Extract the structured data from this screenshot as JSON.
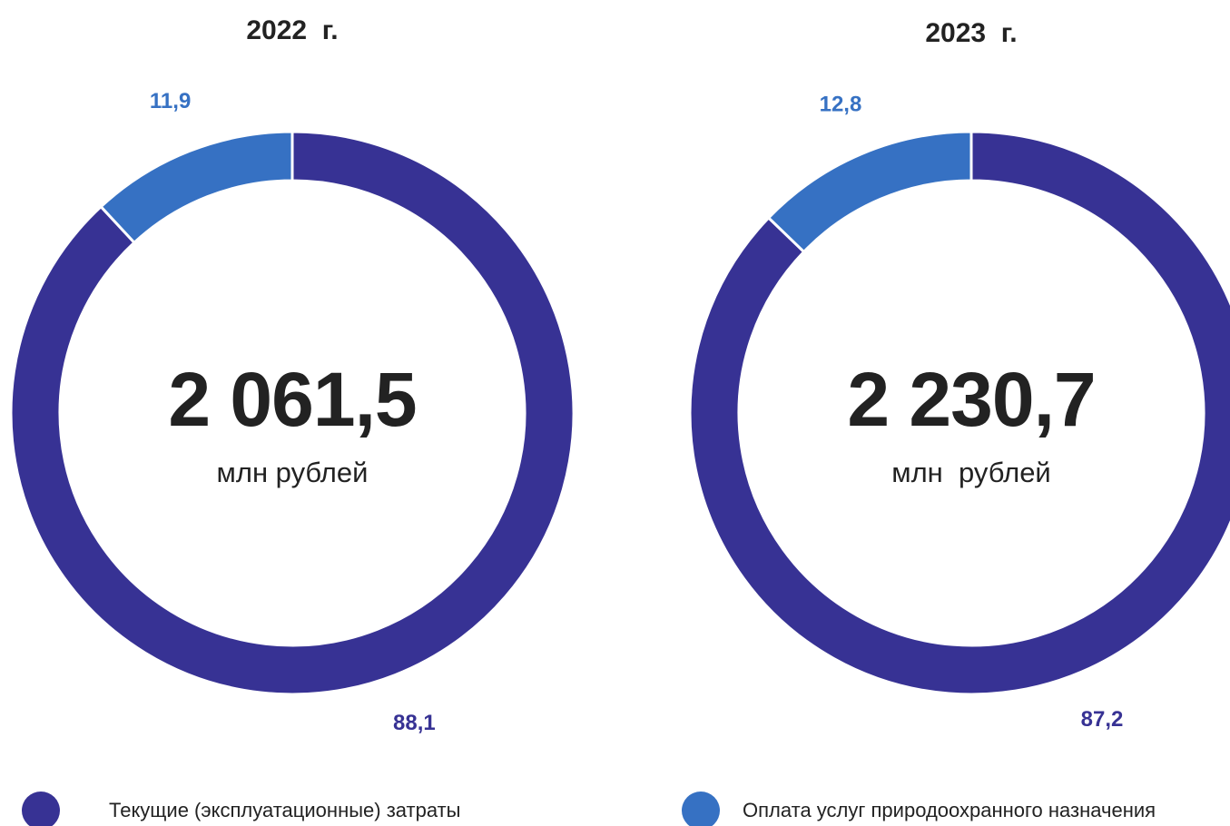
{
  "legend": {
    "items": [
      {
        "name": "Текущие (эксплуатационные) затраты",
        "color": "#373294"
      },
      {
        "name": "Оплата услуг природоохранного назначения",
        "color": "#3671c3"
      }
    ]
  },
  "chart_data": [
    {
      "type": "pie",
      "title": "2022  г.",
      "values": [
        88.1,
        11.9
      ],
      "value_labels": [
        "88,1",
        "11,9"
      ],
      "colors": [
        "#373294",
        "#3671c3"
      ],
      "total": 2061.5,
      "total_label": "2 061,5",
      "unit": "млн рублей"
    },
    {
      "type": "pie",
      "title": "2023  г.",
      "values": [
        87.2,
        12.8
      ],
      "value_labels": [
        "87,2",
        "12,8"
      ],
      "colors": [
        "#373294",
        "#3671c3"
      ],
      "total": 2230.7,
      "total_label": "2 230,7",
      "unit": "млн  рублей"
    }
  ]
}
